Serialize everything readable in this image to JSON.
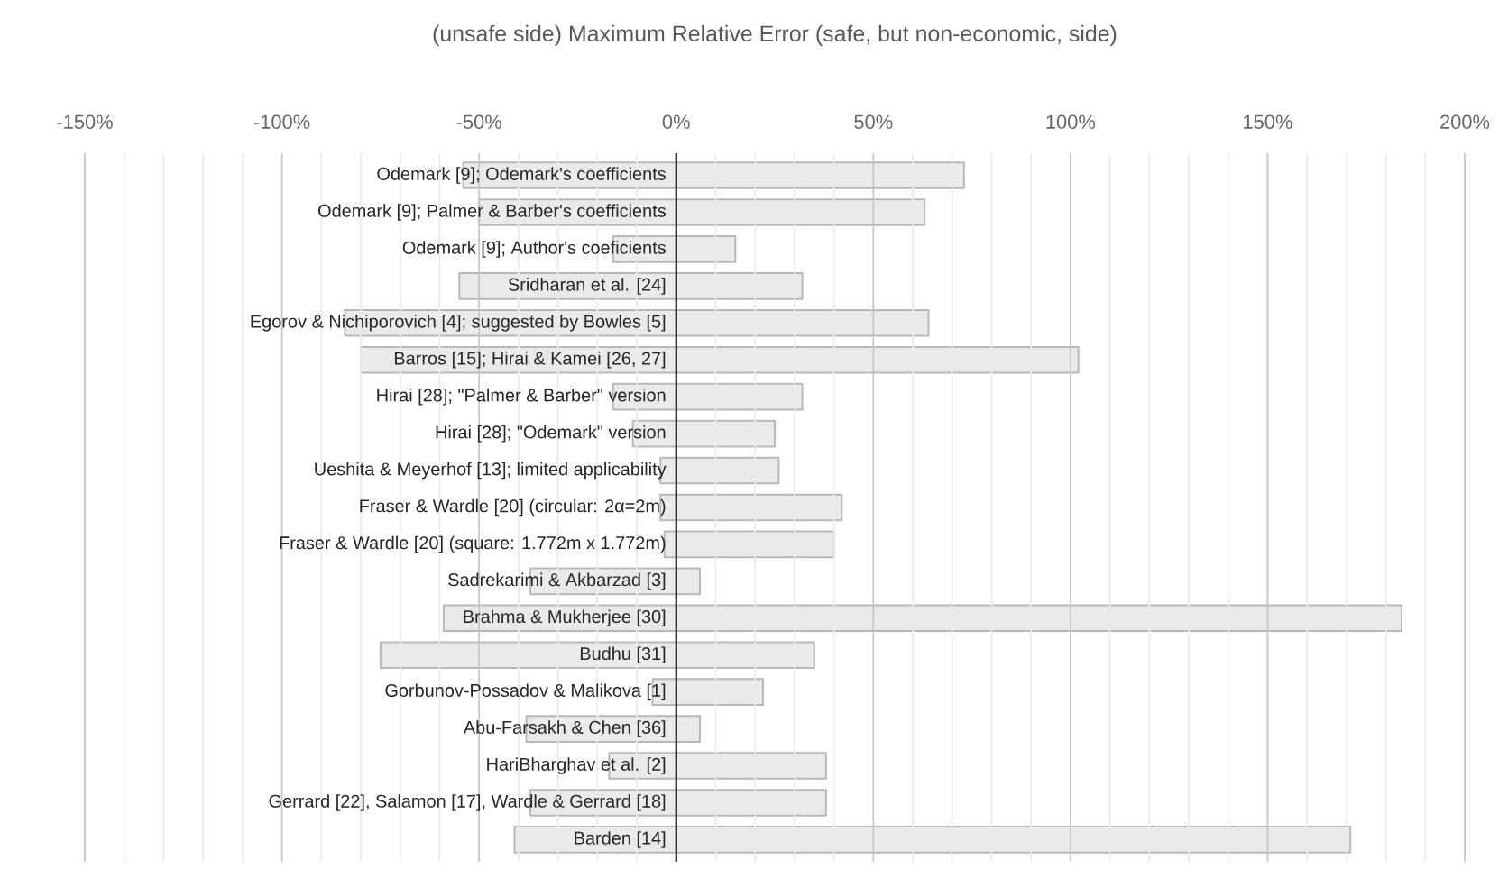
{
  "chart_data": {
    "type": "bar",
    "orientation": "horizontal",
    "title": "(unsafe side) Maximum Relative Error (safe, but non-economic, side)",
    "categories": [
      "Odemark [9]; Odemark's coefficients",
      "Odemark [9]; Palmer & Barber's coefficients",
      "Odemark [9]; Author's coeficients",
      "Sridharan et al. [24]",
      "Egorov & Nichiporovich [4]; suggested by Bowles [5]",
      "Barros [15]; Hirai & Kamei [26, 27]",
      "Hirai [28]; \"Palmer & Barber\" version",
      "Hirai [28]; \"Odemark\" version",
      "Ueshita & Meyerhof [13]; limited applicability",
      "Fraser & Wardle [20] (circular: 2α=2m)",
      "Fraser & Wardle [20] (square: 1.772m x 1.772m)",
      "Sadrekarimi & Akbarzad [3]",
      "Brahma & Mukherjee [30]",
      "Budhu [31]",
      "Gorbunov-Possadov & Malikova [1]",
      "Abu-Farsakh & Chen [36]",
      "HariBharghav et al. [2]",
      "Gerrard [22], Salamon [17], Wardle & Gerrard [18]",
      "Barden [14]"
    ],
    "base": [
      -54,
      -50,
      -16,
      -55,
      -84,
      -80,
      -16,
      -11,
      -4,
      -4,
      -3,
      -37,
      -59,
      -75,
      -6,
      -38,
      -17,
      -37,
      -41
    ],
    "values": [
      127,
      113,
      31,
      87,
      148,
      182,
      48,
      36,
      30,
      46,
      43,
      43,
      243,
      110,
      28,
      44,
      55,
      75,
      212
    ],
    "color": "#e9eaec",
    "xlim": [
      -150,
      200
    ],
    "xticks": [
      {
        "value": -150,
        "label": "-150%"
      },
      {
        "value": -100,
        "label": "-100%"
      },
      {
        "value": -50,
        "label": "-50%"
      },
      {
        "value": 0,
        "label": "0%"
      },
      {
        "value": 50,
        "label": "50%"
      },
      {
        "value": 100,
        "label": "100%"
      },
      {
        "value": 150,
        "label": "150%"
      },
      {
        "value": 200,
        "label": "200%"
      }
    ],
    "grid": "x"
  }
}
